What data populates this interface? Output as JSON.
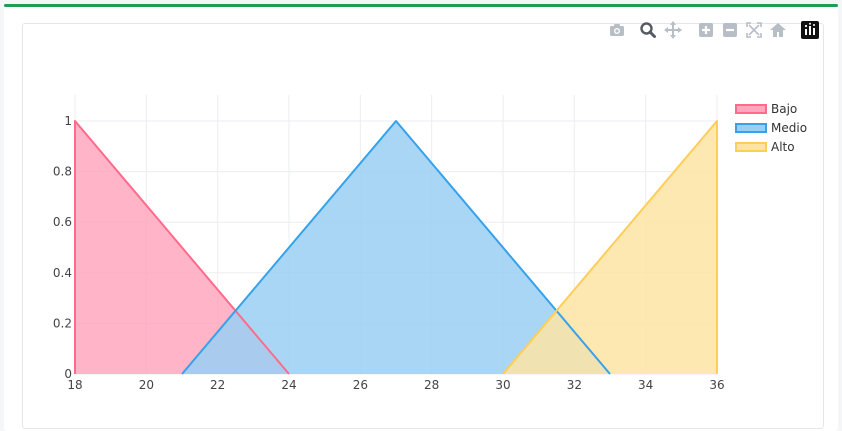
{
  "colors": {
    "accent_stripe": "#1f9d55",
    "grid": "#ebedf0",
    "modebar_icon": "#b8bec6",
    "modebar_active": "#555b63"
  },
  "modebar": {
    "buttons": [
      {
        "icon": "camera-icon"
      },
      {
        "icon": "zoom-icon"
      },
      {
        "icon": "pan-icon"
      },
      {
        "icon": "zoom-in-icon"
      },
      {
        "icon": "zoom-out-icon"
      },
      {
        "icon": "autoscale-icon"
      },
      {
        "icon": "reset-axes-icon"
      },
      {
        "icon": "plotly-logo-icon"
      }
    ]
  },
  "chart_data": {
    "type": "area",
    "title": "",
    "xlabel": "",
    "ylabel": "",
    "xlim": [
      18,
      36
    ],
    "ylim": [
      0,
      1
    ],
    "x_ticks": [
      18,
      20,
      22,
      24,
      26,
      28,
      30,
      32,
      34,
      36
    ],
    "y_ticks": [
      0,
      0.2,
      0.4,
      0.6,
      0.8,
      1
    ],
    "grid": true,
    "legend_position": "top-right",
    "series": [
      {
        "name": "Bajo",
        "color": "#ff6b8b",
        "fill": "#ffa7bd",
        "x": [
          18,
          18,
          24
        ],
        "y": [
          0,
          1,
          0
        ]
      },
      {
        "name": "Medio",
        "color": "#36a2eb",
        "fill": "#9acff3",
        "x": [
          21,
          27,
          33
        ],
        "y": [
          0,
          1,
          0
        ]
      },
      {
        "name": "Alto",
        "color": "#ffce56",
        "fill": "#fde4a4",
        "x": [
          30,
          36,
          36
        ],
        "y": [
          0,
          1,
          0
        ]
      }
    ]
  }
}
